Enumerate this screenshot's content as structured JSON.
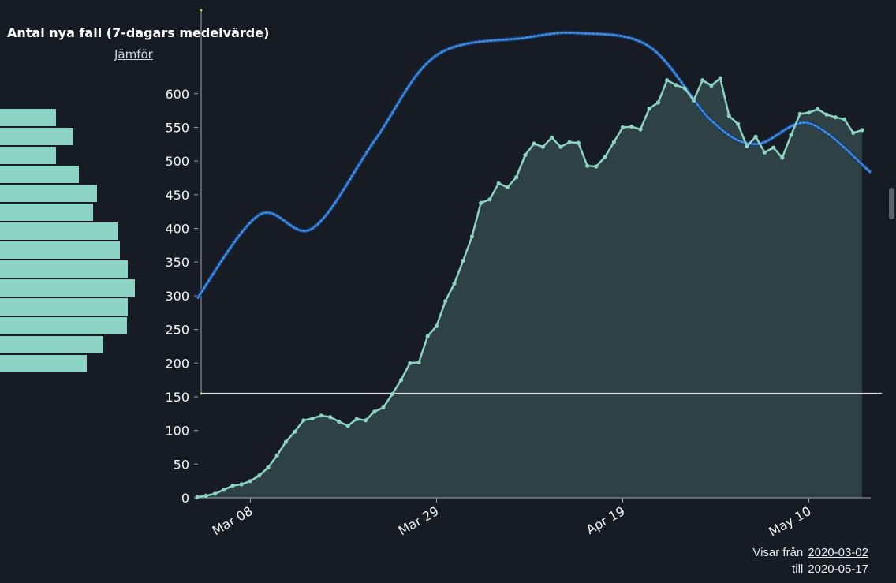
{
  "header": {
    "title": "Antal nya fall (7-dagars medelvärde)",
    "compare_label": "Jämför"
  },
  "range": {
    "from_label": "Visar från",
    "from_date": "2020-03-02",
    "to_label": "till",
    "to_date": "2020-05-17"
  },
  "colors": {
    "background": "#171c24",
    "series": "#8cd3c4",
    "area": "#2e4245",
    "trend": "#2a6fc0",
    "reference": "#d8d8d8",
    "axis": "#9aa8b0"
  },
  "chart_data": {
    "type": "area",
    "x_start": "2020-03-02",
    "x_end": "2020-05-17",
    "x_tick_labels": [
      "Mar 08",
      "Mar 29",
      "Apr 19",
      "May 10"
    ],
    "x_tick_dates": [
      "2020-03-08",
      "2020-03-29",
      "2020-04-19",
      "2020-05-10"
    ],
    "y_ticks": [
      0,
      50,
      100,
      150,
      200,
      250,
      300,
      350,
      400,
      450,
      500,
      550,
      600
    ],
    "ylim": [
      0,
      700
    ],
    "grid": false,
    "series": [
      {
        "values": [
          1,
          3,
          6,
          12,
          18,
          20,
          25,
          33,
          45,
          63,
          83,
          98,
          115,
          118,
          122,
          120,
          113,
          107,
          117,
          115,
          128,
          134,
          154,
          175,
          200,
          201,
          240,
          255,
          292,
          318,
          352,
          388,
          438,
          443,
          467,
          461,
          476,
          509,
          526,
          521,
          535,
          521,
          528,
          527,
          493,
          492,
          506,
          528,
          550,
          551,
          547,
          578,
          587,
          620,
          613,
          608,
          590,
          620,
          612,
          623,
          567,
          555,
          522,
          536,
          513,
          520,
          505,
          539,
          570,
          572,
          577,
          569,
          565,
          562,
          542,
          546
        ]
      }
    ],
    "trend": {
      "x": [
        "2020-03-02",
        "2020-03-09",
        "2020-03-15",
        "2020-03-22",
        "2020-03-29",
        "2020-04-08",
        "2020-04-14",
        "2020-04-22",
        "2020-04-29",
        "2020-05-04",
        "2020-05-10",
        "2020-05-17"
      ],
      "values": [
        296,
        420,
        400,
        530,
        657,
        683,
        690,
        670,
        560,
        525,
        556,
        483
      ]
    },
    "reference_line": 155,
    "histogram": [
      {
        "label": "",
        "value": 0
      }
    ]
  },
  "histogram_values": [
    71,
    93,
    71,
    100,
    123,
    118,
    149,
    152,
    162,
    171,
    162,
    161,
    131,
    110
  ]
}
